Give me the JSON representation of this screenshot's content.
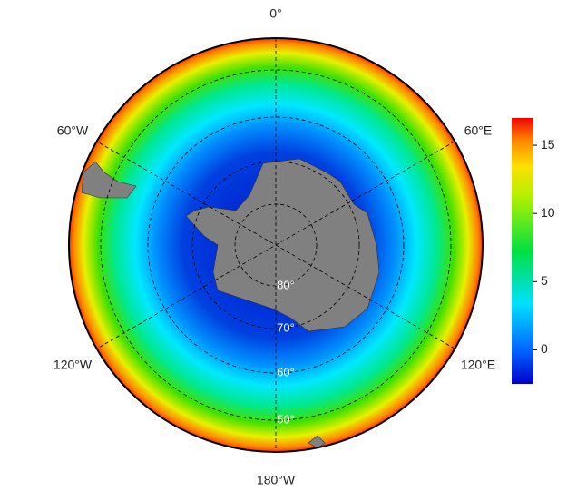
{
  "map": {
    "longitude_labels": [
      "0°",
      "60°E",
      "120°E",
      "180°W",
      "120°W",
      "60°W"
    ],
    "latitude_labels": [
      "80°",
      "70°",
      "60°",
      "50°"
    ]
  },
  "colorbar": {
    "lim": [
      -2.5,
      17
    ],
    "ticks": [
      0,
      5,
      10,
      15
    ]
  }
}
